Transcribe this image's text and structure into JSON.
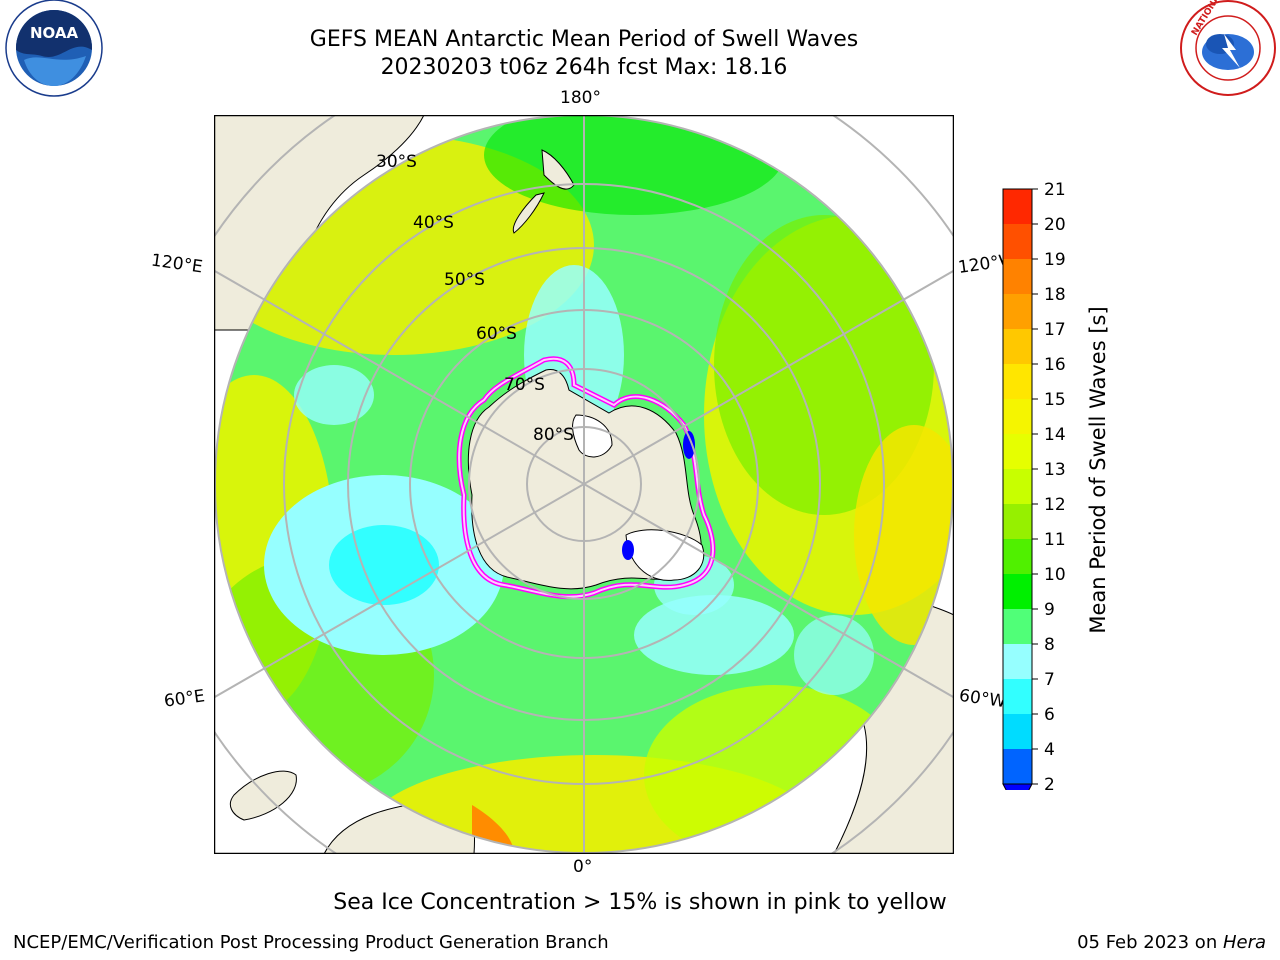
{
  "title": {
    "line1": "GEFS MEAN Antarctic Mean Period of Swell Waves",
    "line2": "20230203 t06z 264h fcst   Max: 18.16"
  },
  "map": {
    "projection": "south-polar-stereographic",
    "longitude_labels": [
      "180°",
      "120°E",
      "120°W",
      "60°E",
      "60°W",
      "0°"
    ],
    "latitude_labels": [
      "30°S",
      "40°S",
      "50°S",
      "60°S",
      "70°S",
      "80°S"
    ],
    "land_color": "#efecdc",
    "ocean_field_colors": [
      "#00c8ff",
      "#96ffff",
      "#50ff78",
      "#00e600",
      "#78ff00",
      "#c8ff00",
      "#f0ff00",
      "#ffdc00",
      "#ff8c00"
    ],
    "sea_ice_edge_colors": [
      "#ff00ff",
      "#ff99cc",
      "#ffff66"
    ]
  },
  "colorbar": {
    "label": "Mean Period of Swell Waves [s]",
    "ticks": [
      "2",
      "4",
      "6",
      "7",
      "8",
      "9",
      "10",
      "11",
      "12",
      "13",
      "14",
      "15",
      "16",
      "17",
      "18",
      "19",
      "20",
      "21"
    ],
    "colors": [
      "#0064ff",
      "#00dcff",
      "#32ffff",
      "#96ffff",
      "#50ff78",
      "#00f000",
      "#50f000",
      "#96f000",
      "#c8ff00",
      "#e6ff00",
      "#f5f500",
      "#ffe600",
      "#ffc800",
      "#ffa000",
      "#ff8200",
      "#ff5000",
      "#ff2800",
      "#ff0000"
    ],
    "extend_color": "#0000ff"
  },
  "ice_note": "Sea Ice Concentration > 15% is shown in pink to yellow",
  "footer": {
    "left": "NCEP/EMC/Verification Post Processing Product Generation Branch",
    "right_prefix": "05 Feb 2023 on ",
    "right_host": "Hera"
  },
  "logos": {
    "left_text": "NOAA",
    "right_text": "NATIONAL WEATHER SERVICE"
  }
}
